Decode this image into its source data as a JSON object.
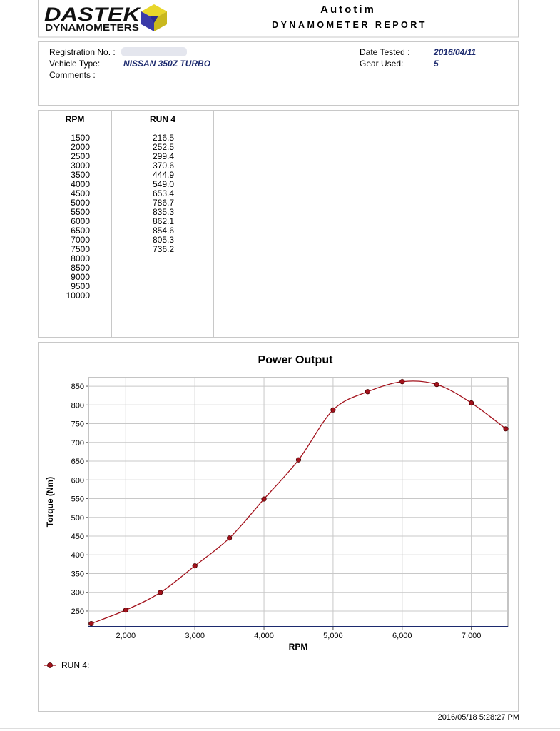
{
  "header": {
    "logo_top": "DASTEK",
    "logo_bottom": "DYNAMOMETERS",
    "title": "Autotim",
    "subtitle": "DYNAMOMETER REPORT"
  },
  "info": {
    "registration_label": "Registration No. :",
    "vehicle_label": "Vehicle Type:",
    "vehicle_value": "NISSAN 350Z TURBO",
    "comments_label": "Comments :",
    "date_label": "Date Tested :",
    "date_value": "2016/04/11",
    "gear_label": "Gear Used:",
    "gear_value": "5"
  },
  "table": {
    "columns": [
      "RPM",
      "RUN 4"
    ],
    "rpm": [
      "1500",
      "2000",
      "2500",
      "3000",
      "3500",
      "4000",
      "4500",
      "5000",
      "5500",
      "6000",
      "6500",
      "7000",
      "7500",
      "8000",
      "8500",
      "9000",
      "9500",
      "10000"
    ],
    "run4": [
      "216.5",
      "252.5",
      "299.4",
      "370.6",
      "444.9",
      "549.0",
      "653.4",
      "786.7",
      "835.3",
      "862.1",
      "854.6",
      "805.3",
      "736.2"
    ]
  },
  "chart_data": {
    "type": "line",
    "title": "Power Output",
    "x_label": "RPM",
    "y_label": "Torque (Nm)",
    "x": [
      1500,
      2000,
      2500,
      3000,
      3500,
      4000,
      4500,
      5000,
      5500,
      6000,
      6500,
      7000,
      7500
    ],
    "series": [
      {
        "name": "RUN 4:",
        "color": "#a3121c",
        "values": [
          216.5,
          252.5,
          299.4,
          370.6,
          444.9,
          549.0,
          653.4,
          786.7,
          835.3,
          862.1,
          854.6,
          805.3,
          736.2
        ]
      }
    ],
    "xlim": [
      1460,
      7530
    ],
    "xticks": [
      {
        "value": 2000,
        "label": "2,000"
      },
      {
        "value": 3000,
        "label": "3,000"
      },
      {
        "value": 4000,
        "label": "4,000"
      },
      {
        "value": 5000,
        "label": "5,000"
      },
      {
        "value": 6000,
        "label": "6,000"
      },
      {
        "value": 7000,
        "label": "7,000"
      }
    ],
    "ylim": [
      208,
      873
    ],
    "yticks": [
      250,
      300,
      350,
      400,
      450,
      500,
      550,
      600,
      650,
      700,
      750,
      800,
      850
    ],
    "grid": true
  },
  "footer": {
    "timestamp": "2016/05/18 5:28:27 PM"
  }
}
